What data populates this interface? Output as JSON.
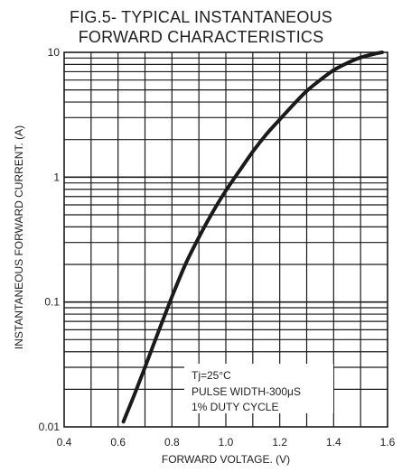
{
  "chart_data": {
    "type": "line",
    "title_line1": "FIG.5- TYPICAL INSTANTANEOUS",
    "title_line2": "FORWARD CHARACTERISTICS",
    "xlabel": "FORWARD VOLTAGE. (V)",
    "ylabel": "INSTANTANEOUS FORWARD CURRENT. (A)",
    "xlim": [
      0.4,
      1.6
    ],
    "ylim": [
      0.01,
      10
    ],
    "y_scale": "log",
    "x_ticks": [
      "0.4",
      "0.6",
      "0.8",
      "1.0",
      "1.2",
      "1.4",
      "1.6"
    ],
    "y_ticks": [
      "0.01",
      "0.1",
      "1",
      "10"
    ],
    "grid": true,
    "series": [
      {
        "x": [
          0.62,
          0.66,
          0.7,
          0.75,
          0.8,
          0.85,
          0.9,
          0.95,
          1.0,
          1.05,
          1.1,
          1.15,
          1.2,
          1.25,
          1.3,
          1.35,
          1.4,
          1.45,
          1.5,
          1.55,
          1.58
        ],
        "y": [
          0.011,
          0.018,
          0.03,
          0.058,
          0.11,
          0.2,
          0.33,
          0.52,
          0.78,
          1.12,
          1.6,
          2.2,
          2.9,
          3.8,
          4.9,
          6.0,
          7.2,
          8.2,
          9.1,
          9.7,
          10
        ]
      }
    ],
    "annotation": [
      "Tj=25°C",
      "PULSE WIDTH-300μS",
      "1% DUTY CYCLE"
    ]
  }
}
